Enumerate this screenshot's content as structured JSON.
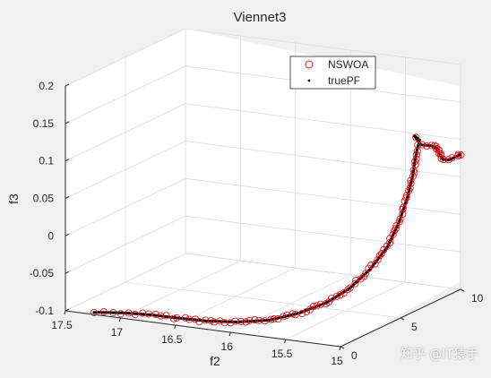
{
  "chart_data": {
    "type": "scatter3d",
    "title": "Viennet3",
    "xlabel": "f2",
    "ylabel": "",
    "zlabel": "f3",
    "f2_ticks": [
      "17.5",
      "17",
      "16.5",
      "16",
      "15.5",
      "15"
    ],
    "f1_ticks": [
      "0",
      "5",
      "10"
    ],
    "f3_ticks": [
      "-0.1",
      "-0.05",
      "0",
      "0.05",
      "0.1",
      "0.15",
      "0.2"
    ],
    "f2_range": [
      15,
      17.5
    ],
    "f1_range": [
      0,
      10
    ],
    "f3_range": [
      -0.1,
      0.2
    ],
    "grid": true,
    "legend_position": "top-right",
    "series": [
      {
        "name": "NSWOA",
        "marker": "open circle",
        "color": "#e0191c"
      },
      {
        "name": "truePF",
        "marker": "dot",
        "color": "#000000"
      }
    ],
    "pareto_front_curve": [
      {
        "f2": 17.25,
        "f1": 0.1,
        "f3": -0.098
      },
      {
        "f2": 17.0,
        "f1": 0.12,
        "f3": -0.094
      },
      {
        "f2": 16.75,
        "f1": 0.15,
        "f3": -0.092
      },
      {
        "f2": 16.5,
        "f1": 0.2,
        "f3": -0.092
      },
      {
        "f2": 16.25,
        "f1": 0.3,
        "f3": -0.092
      },
      {
        "f2": 16.0,
        "f1": 0.5,
        "f3": -0.09
      },
      {
        "f2": 15.75,
        "f1": 0.9,
        "f3": -0.086
      },
      {
        "f2": 15.55,
        "f1": 1.6,
        "f3": -0.078
      },
      {
        "f2": 15.4,
        "f1": 2.5,
        "f3": -0.068
      },
      {
        "f2": 15.3,
        "f1": 3.5,
        "f3": -0.055
      },
      {
        "f2": 15.22,
        "f1": 4.5,
        "f3": -0.035
      },
      {
        "f2": 15.15,
        "f1": 5.3,
        "f3": -0.01
      },
      {
        "f2": 15.1,
        "f1": 5.8,
        "f3": 0.02
      },
      {
        "f2": 15.06,
        "f1": 6.1,
        "f3": 0.05
      },
      {
        "f2": 15.03,
        "f1": 6.3,
        "f3": 0.08
      },
      {
        "f2": 15.02,
        "f1": 6.4,
        "f3": 0.1
      },
      {
        "f2": 15.01,
        "f1": 6.5,
        "f3": 0.115
      },
      {
        "f2": 15.0,
        "f1": 6.6,
        "f3": 0.125
      },
      {
        "f2": 15.05,
        "f1": 6.6,
        "f3": 0.13
      },
      {
        "f2": 15.03,
        "f1": 7.0,
        "f3": 0.115
      },
      {
        "f2": 15.01,
        "f1": 7.6,
        "f3": 0.11
      },
      {
        "f2": 15.01,
        "f1": 8.1,
        "f3": 0.103
      },
      {
        "f2": 15.0,
        "f1": 8.5,
        "f3": 0.085
      },
      {
        "f2": 15.0,
        "f1": 9.0,
        "f3": 0.08
      },
      {
        "f2": 15.0,
        "f1": 9.5,
        "f3": 0.08
      },
      {
        "f2": 15.0,
        "f1": 10.0,
        "f3": 0.08
      }
    ],
    "nswoa_sample_count": 110,
    "watermark": "知乎 @IT猿手"
  }
}
